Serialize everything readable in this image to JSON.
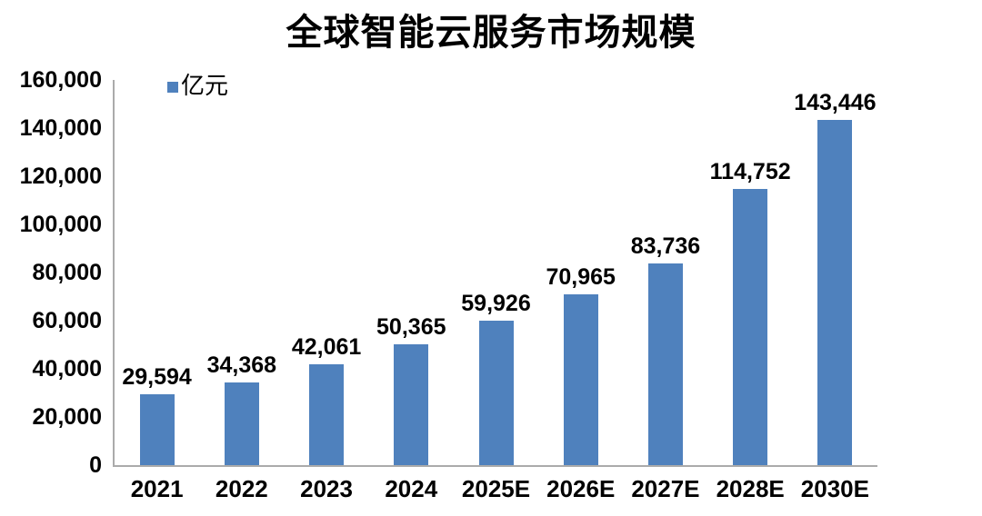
{
  "chart_data": {
    "type": "bar",
    "title": "全球智能云服务市场规模",
    "legend": {
      "label": "亿元",
      "position": "top-left-inside"
    },
    "categories": [
      "2021",
      "2022",
      "2023",
      "2024",
      "2025E",
      "2026E",
      "2027E",
      "2028E",
      "2030E"
    ],
    "values": [
      29594,
      34368,
      42061,
      50365,
      59926,
      70965,
      83736,
      114752,
      143446
    ],
    "value_labels": [
      "29,594",
      "34,368",
      "42,061",
      "50,365",
      "59,926",
      "70,965",
      "83,736",
      "114,752",
      "143,446"
    ],
    "xlabel": "",
    "ylabel": "",
    "ylim": [
      0,
      160000
    ],
    "y_ticks": {
      "values": [
        0,
        20000,
        40000,
        60000,
        80000,
        100000,
        120000,
        140000,
        160000
      ],
      "labels": [
        "0",
        "20,000",
        "40,000",
        "60,000",
        "80,000",
        "100,000",
        "120,000",
        "140,000",
        "160,000"
      ]
    },
    "grid": false,
    "colors": {
      "bar": "#4F81BD",
      "axis_line": "#ABABAB",
      "text": "#000000",
      "background": "#FFFFFF"
    }
  }
}
